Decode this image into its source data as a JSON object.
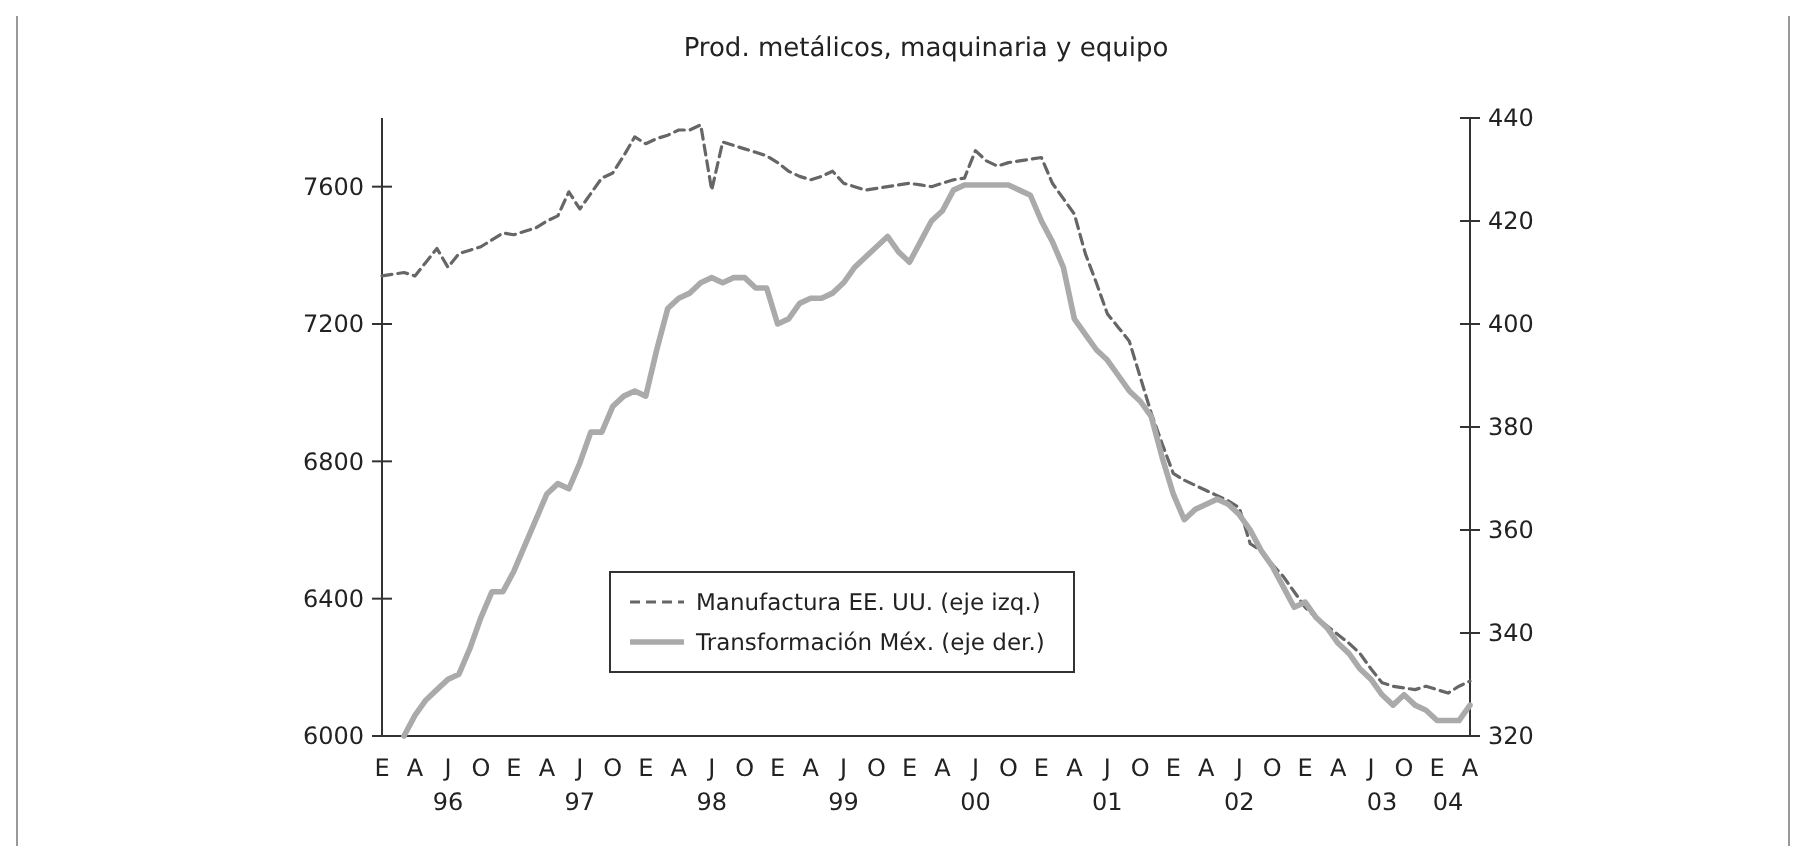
{
  "chart_data": {
    "type": "line",
    "title": "Prod. metálicos, maquinaria y equipo",
    "categories": [
      "E",
      null,
      null,
      "A",
      null,
      null,
      "J\n96",
      null,
      null,
      "O",
      null,
      null,
      "E",
      null,
      null,
      "A",
      null,
      null,
      "J\n97",
      null,
      null,
      "O",
      null,
      null,
      "E",
      null,
      null,
      "A",
      null,
      null,
      "J\n98",
      null,
      null,
      "O",
      null,
      null,
      "E",
      null,
      null,
      "A",
      null,
      null,
      "J\n99",
      null,
      null,
      "O",
      null,
      null,
      "E",
      null,
      null,
      "A",
      null,
      null,
      "J\n00",
      null,
      null,
      "O",
      null,
      null,
      "E",
      null,
      null,
      "A",
      null,
      null,
      "J\n01",
      null,
      null,
      "O",
      null,
      null,
      "E",
      null,
      null,
      "A",
      null,
      null,
      "J\n02",
      null,
      null,
      "O",
      null,
      null,
      "E",
      null,
      null,
      "A",
      null,
      null,
      "J",
      "\n03",
      null,
      "O",
      null,
      null,
      "E",
      "\n04",
      null,
      "A"
    ],
    "ylim": [
      6000,
      7800
    ],
    "yticks": [
      6000,
      6400,
      6800,
      7200,
      7600
    ],
    "y2lim": [
      320,
      440
    ],
    "y2ticks": [
      320,
      340,
      360,
      380,
      400,
      420,
      440
    ],
    "legend": "bottom",
    "grid": false,
    "marker": "none",
    "series": [
      {
        "name": "Manufactura EE. UU. (eje izq.)",
        "color": "#666666",
        "line_style": "dashed",
        "values": [
          7340,
          7345,
          7350,
          7340,
          7380,
          7420,
          7365,
          7405,
          7415,
          7425,
          7445,
          7465,
          7460,
          7470,
          7480,
          7500,
          7515,
          7585,
          7535,
          7580,
          7625,
          7640,
          7690,
          7745,
          7725,
          7740,
          7750,
          7765,
          7765,
          7780,
          7590,
          7730,
          7720,
          7710,
          7700,
          7690,
          7670,
          7645,
          7630,
          7620,
          7630,
          7645,
          7610,
          7600,
          7590,
          7595,
          7600,
          7605,
          7610,
          7605,
          7600,
          7610,
          7620,
          7625,
          7705,
          7675,
          7660,
          7670,
          7675,
          7680,
          7685,
          7610,
          7565,
          7520,
          7405,
          7320,
          7230,
          7190,
          7150,
          7045,
          6940,
          6850,
          6765,
          6745,
          6730,
          6715,
          6700,
          6685,
          6665,
          6560,
          6540,
          6500,
          6465,
          6420,
          6375,
          6345,
          6320,
          6295,
          6270,
          6240,
          6195,
          6155,
          6145,
          6140,
          6135,
          6145,
          6135,
          6125,
          6145,
          6160
        ]
      },
      {
        "name": "Transformación Méx. (eje der.)",
        "color": "#aaaaaa",
        "line_style": "solid",
        "axis": "y2",
        "values": [
          null,
          null,
          320,
          324,
          327,
          329,
          331,
          332,
          337,
          343,
          348,
          348,
          352,
          357,
          362,
          367,
          369,
          368,
          373,
          379,
          379,
          384,
          386,
          387,
          386,
          395,
          403,
          405,
          406,
          408,
          409,
          408,
          409,
          409,
          407,
          407,
          400,
          401,
          404,
          405,
          405,
          406,
          408,
          411,
          413,
          415,
          417,
          414,
          412,
          416,
          420,
          422,
          426,
          427,
          427,
          427,
          427,
          427,
          426,
          425,
          420,
          416,
          411,
          401,
          398,
          395,
          393,
          390,
          387,
          385,
          382,
          374,
          367,
          362,
          364,
          365,
          366,
          365,
          363,
          360,
          356,
          353,
          349,
          345,
          346,
          343,
          341,
          338,
          336,
          333,
          331,
          328,
          326,
          328,
          326,
          325,
          323,
          323,
          323,
          326
        ]
      }
    ]
  }
}
